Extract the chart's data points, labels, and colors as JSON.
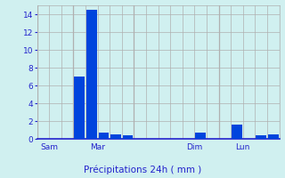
{
  "title": "Précipitations 24h ( mm )",
  "bar_color": "#0044dd",
  "bg_color": "#d0f0f0",
  "grid_color": "#b0b0b0",
  "axis_label_color": "#2222cc",
  "tick_color": "#2222cc",
  "ylim": [
    0,
    15
  ],
  "yticks": [
    0,
    2,
    4,
    6,
    8,
    10,
    12,
    14
  ],
  "bar_positions": [
    2,
    3,
    4,
    5,
    6,
    7,
    8,
    9,
    10,
    11,
    12,
    13,
    14,
    15,
    16,
    17,
    18,
    19,
    20,
    21
  ],
  "bar_heights": [
    0.0,
    0.0,
    0.0,
    7.0,
    14.5,
    0.7,
    0.5,
    0.45,
    0.0,
    0.0,
    0.0,
    0.0,
    0.0,
    0.75,
    0.0,
    0.0,
    1.6,
    0.0,
    0.4,
    0.55
  ],
  "day_labels": [
    {
      "label": "Sam",
      "x": 2.5
    },
    {
      "label": "Mar",
      "x": 6.5
    },
    {
      "label": "Dim",
      "x": 14.5
    },
    {
      "label": "Lun",
      "x": 18.5
    }
  ],
  "day_line_positions": [
    1.5,
    4.5,
    9.5,
    16.5,
    21.5
  ],
  "xlim": [
    1.5,
    21.5
  ],
  "bar_width": 0.85
}
